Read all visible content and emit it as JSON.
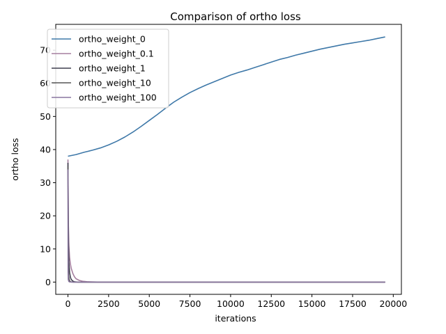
{
  "chart_data": {
    "type": "line",
    "title": "Comparison of ortho loss",
    "xlabel": "iterations",
    "ylabel": "ortho loss",
    "xlim": [
      -750,
      20500
    ],
    "ylim": [
      -3.7,
      77.8
    ],
    "xticks": [
      0,
      2500,
      5000,
      7500,
      10000,
      12500,
      15000,
      17500,
      20000
    ],
    "yticks": [
      0,
      10,
      20,
      30,
      40,
      50,
      60,
      70
    ],
    "grid": false,
    "legend_position": "top-left",
    "series": [
      {
        "name": "ortho_weight_0",
        "color": "#3e78a8",
        "x": [
          0,
          500,
          1000,
          1500,
          2000,
          2500,
          3000,
          3500,
          4000,
          4500,
          5000,
          5500,
          6000,
          6500,
          7000,
          7500,
          8000,
          8500,
          9000,
          9500,
          10000,
          10500,
          11000,
          11500,
          12000,
          12500,
          13000,
          13500,
          14000,
          14500,
          15000,
          15500,
          16000,
          16500,
          17000,
          17500,
          18000,
          18500,
          19000,
          19500
        ],
        "y": [
          38.0,
          38.5,
          39.2,
          39.8,
          40.5,
          41.4,
          42.5,
          43.8,
          45.3,
          47.0,
          48.8,
          50.6,
          52.5,
          54.3,
          55.8,
          57.2,
          58.4,
          59.5,
          60.5,
          61.5,
          62.5,
          63.3,
          64.0,
          64.8,
          65.6,
          66.4,
          67.2,
          67.8,
          68.5,
          69.1,
          69.7,
          70.3,
          70.8,
          71.3,
          71.8,
          72.2,
          72.6,
          73.0,
          73.5,
          74.0
        ]
      },
      {
        "name": "ortho_weight_0.1",
        "color": "#a57f9f",
        "x": [
          0,
          30,
          60,
          100,
          150,
          200,
          300,
          400,
          500,
          700,
          900,
          1200,
          1600,
          2000,
          5000,
          10000,
          15000,
          19500
        ],
        "y": [
          37.0,
          17.0,
          11.0,
          7.5,
          5.5,
          4.2,
          2.6,
          1.6,
          1.0,
          0.5,
          0.25,
          0.1,
          0.05,
          0.0,
          0.0,
          0.0,
          0.0,
          0.0
        ]
      },
      {
        "name": "ortho_weight_1",
        "color": "#3f3f4f",
        "x": [
          0,
          30,
          60,
          100,
          150,
          200,
          300,
          400,
          600,
          1000,
          19500
        ],
        "y": [
          36.0,
          12.0,
          6.0,
          3.0,
          1.5,
          0.8,
          0.3,
          0.1,
          0.0,
          0.0,
          0.0
        ]
      },
      {
        "name": "ortho_weight_10",
        "color": "#555555",
        "x": [
          0,
          20,
          40,
          80,
          150,
          300,
          19500
        ],
        "y": [
          35.0,
          6.0,
          2.0,
          0.6,
          0.1,
          0.0,
          0.0
        ]
      },
      {
        "name": "ortho_weight_100",
        "color": "#8a77a0",
        "x": [
          0,
          10,
          20,
          50,
          100,
          200,
          19500
        ],
        "y": [
          34.0,
          3.0,
          0.8,
          0.2,
          0.05,
          0.0,
          0.0
        ]
      }
    ]
  }
}
